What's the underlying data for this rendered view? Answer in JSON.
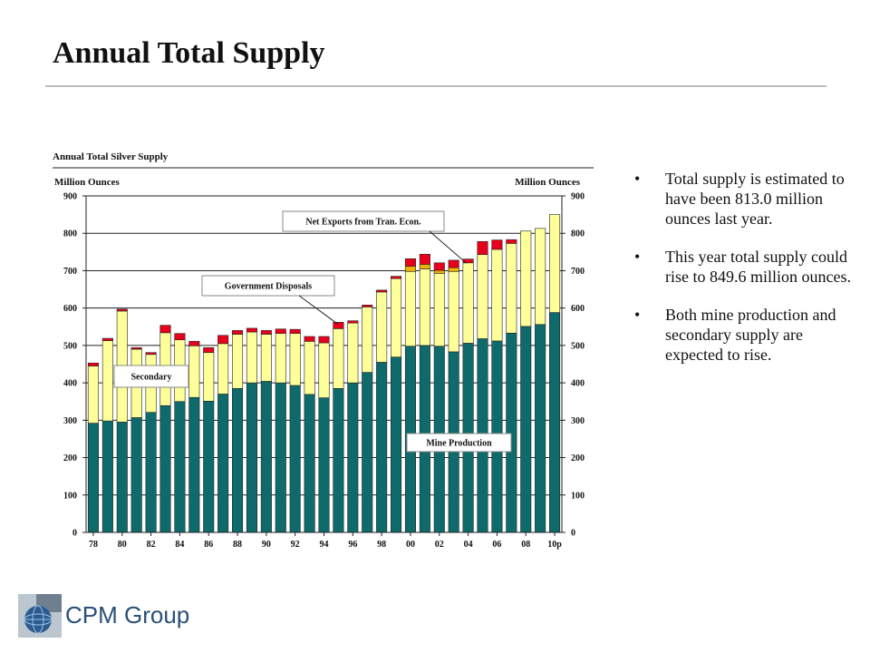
{
  "page": {
    "title": "Annual Total Supply",
    "bullets": [
      "Total supply is estimated to have been  813.0 million ounces last year.",
      "This year total supply could rise to 849.6 million ounces.",
      "Both mine production and secondary supply are expected to rise."
    ],
    "bullet_glyph": "•",
    "logo": {
      "text": "CPM Group",
      "icon": "globe-logo-icon"
    }
  },
  "colors": {
    "mine": "#0f6b6b",
    "secondary": "#ffff99",
    "government": "#f0b000",
    "tran_econ": "#e8001c"
  },
  "chart_data": {
    "type": "bar",
    "stacked": true,
    "title": "Annual Total Silver Supply",
    "ylabel_left": "Million Ounces",
    "ylabel_right": "Million Ounces",
    "ylim": [
      0,
      900
    ],
    "yticks": [
      0,
      100,
      200,
      300,
      400,
      500,
      600,
      700,
      800,
      900
    ],
    "grid": true,
    "categories": [
      "78",
      "79",
      "80",
      "81",
      "82",
      "83",
      "84",
      "85",
      "86",
      "87",
      "88",
      "89",
      "90",
      "91",
      "92",
      "93",
      "94",
      "95",
      "96",
      "97",
      "98",
      "99",
      "00",
      "01",
      "02",
      "03",
      "04",
      "05",
      "06",
      "07",
      "08",
      "09",
      "10p"
    ],
    "x_tick_labels": [
      "78",
      "80",
      "82",
      "84",
      "86",
      "88",
      "90",
      "92",
      "94",
      "96",
      "98",
      "00",
      "02",
      "04",
      "06",
      "08",
      "10p"
    ],
    "series": [
      {
        "name": "Mine Production",
        "color_key": "mine",
        "values": [
          292,
          298,
          295,
          307,
          321,
          339,
          350,
          361,
          351,
          370,
          385,
          400,
          404,
          400,
          393,
          369,
          360,
          385,
          400,
          428,
          455,
          469,
          498,
          500,
          498,
          483,
          506,
          518,
          512,
          533,
          551,
          556,
          588
        ]
      },
      {
        "name": "Secondary",
        "color_key": "secondary",
        "values": [
          153,
          215,
          297,
          183,
          155,
          195,
          165,
          138,
          130,
          135,
          145,
          136,
          126,
          132,
          139,
          142,
          147,
          160,
          160,
          175,
          188,
          210,
          200,
          205,
          195,
          215,
          215,
          225,
          245,
          240,
          255,
          257,
          262
        ]
      },
      {
        "color_key": "government",
        "values": [
          0,
          0,
          0,
          0,
          0,
          0,
          0,
          0,
          0,
          0,
          0,
          0,
          0,
          0,
          0,
          0,
          0,
          0,
          0,
          0,
          0,
          0,
          14,
          12,
          8,
          10,
          0,
          0,
          0,
          0,
          0,
          0,
          0
        ]
      },
      {
        "name": "Net Exports from Tran. Econ.",
        "color_key": "tran_econ",
        "values": [
          8,
          6,
          5,
          4,
          5,
          20,
          17,
          12,
          13,
          22,
          10,
          10,
          10,
          12,
          11,
          13,
          17,
          17,
          6,
          5,
          5,
          6,
          20,
          27,
          20,
          20,
          10,
          35,
          25,
          10,
          0,
          0,
          0
        ]
      }
    ],
    "annotations": [
      {
        "text": "Net Exports from Tran. Econ.",
        "points_to": "04"
      },
      {
        "text": "Government Disposals",
        "points_to": "95"
      },
      {
        "text": "Secondary",
        "points_to": ""
      },
      {
        "text": "Mine Production",
        "points_to": ""
      }
    ]
  }
}
